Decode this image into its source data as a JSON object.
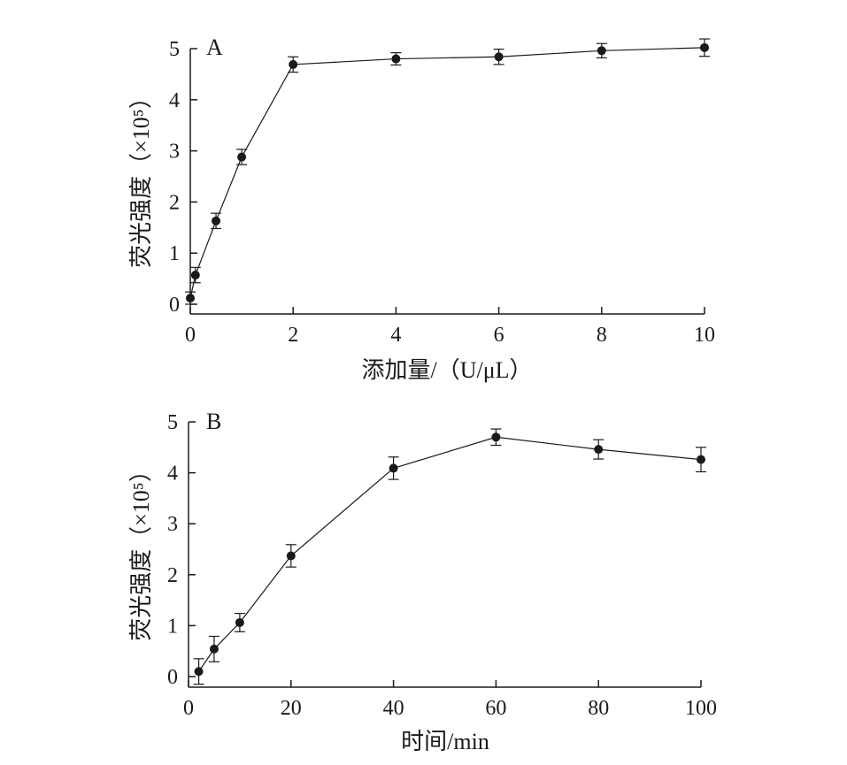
{
  "chart_data": [
    {
      "type": "line",
      "panel_label": "A",
      "title": "",
      "xlabel": "添加量/（U/μL）",
      "ylabel": "荧光强度（×10⁵）",
      "xlim": [
        0,
        10
      ],
      "ylim": [
        0,
        5
      ],
      "xticks": [
        0,
        2,
        4,
        6,
        8,
        10
      ],
      "yticks": [
        0,
        1,
        2,
        3,
        4,
        5
      ],
      "grid": false,
      "series": [
        {
          "x": [
            0,
            0.1,
            0.5,
            1,
            2,
            4,
            6,
            8,
            10
          ],
          "y": [
            0.12,
            0.57,
            1.63,
            2.88,
            4.69,
            4.8,
            4.84,
            4.96,
            5.02
          ],
          "error": [
            0.12,
            0.15,
            0.15,
            0.15,
            0.15,
            0.12,
            0.15,
            0.14,
            0.17
          ]
        }
      ]
    },
    {
      "type": "line",
      "panel_label": "B",
      "title": "",
      "xlabel": "时间/min",
      "ylabel": "荧光强度（×10⁵）",
      "xlim": [
        0,
        100
      ],
      "ylim": [
        0,
        5
      ],
      "xticks": [
        0,
        20,
        40,
        60,
        80,
        100
      ],
      "yticks": [
        0,
        1,
        2,
        3,
        4,
        5
      ],
      "grid": false,
      "series": [
        {
          "x": [
            2,
            5,
            10,
            20,
            40,
            60,
            80,
            100
          ],
          "y": [
            0.1,
            0.54,
            1.06,
            2.37,
            4.09,
            4.7,
            4.46,
            4.26
          ],
          "error": [
            0.25,
            0.25,
            0.18,
            0.22,
            0.22,
            0.16,
            0.19,
            0.24
          ]
        }
      ]
    }
  ]
}
